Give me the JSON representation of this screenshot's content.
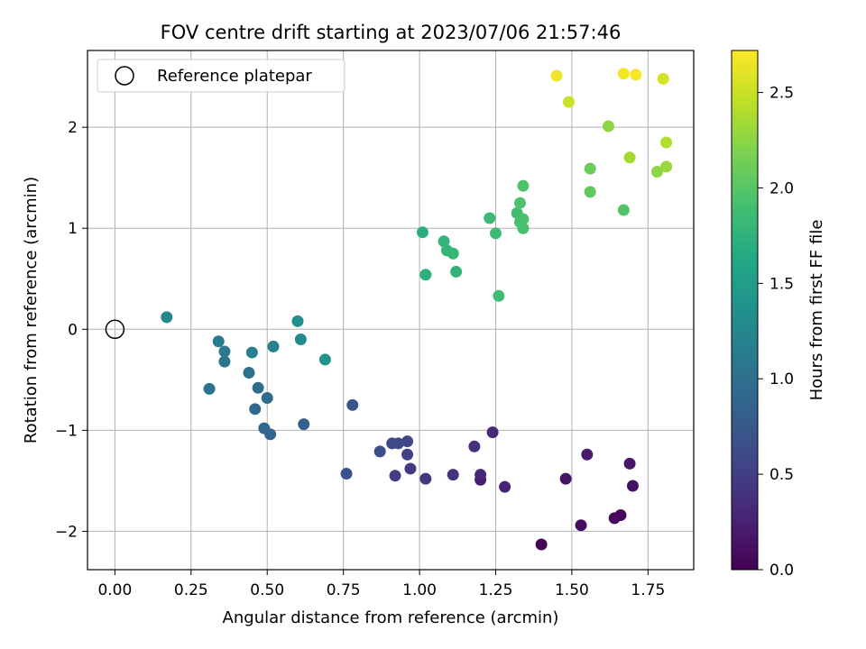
{
  "chart_data": {
    "type": "scatter",
    "title": "FOV centre drift starting at 2023/07/06 21:57:46",
    "xlabel": "Angular distance from reference (arcmin)",
    "ylabel": "Rotation from reference (arcmin)",
    "xlim": [
      -0.09,
      1.9
    ],
    "ylim": [
      -2.38,
      2.76
    ],
    "xticks": [
      "0.00",
      "0.25",
      "0.50",
      "0.75",
      "1.00",
      "1.25",
      "1.50",
      "1.75"
    ],
    "yticks": [
      "−2",
      "−1",
      "0",
      "1",
      "2"
    ],
    "grid": true,
    "legend": {
      "position": "top-left",
      "entries": [
        "Reference platepar"
      ]
    },
    "reference_point": {
      "x": 0.0,
      "y": 0.0
    },
    "colorbar": {
      "label": "Hours from first FF file",
      "range": [
        0.0,
        2.72
      ],
      "ticks": [
        "0.0",
        "0.5",
        "1.0",
        "1.5",
        "2.0",
        "2.5"
      ],
      "colormap": "viridis"
    },
    "points": [
      [
        1.4,
        -2.13,
        0.03
      ],
      [
        1.66,
        -1.84,
        0.05
      ],
      [
        1.64,
        -1.87,
        0.07
      ],
      [
        1.53,
        -1.94,
        0.1
      ],
      [
        1.7,
        -1.55,
        0.12
      ],
      [
        1.48,
        -1.48,
        0.15
      ],
      [
        1.69,
        -1.33,
        0.17
      ],
      [
        1.55,
        -1.24,
        0.2
      ],
      [
        1.2,
        -1.49,
        0.23
      ],
      [
        1.28,
        -1.56,
        0.26
      ],
      [
        1.2,
        -1.44,
        0.3
      ],
      [
        1.24,
        -1.02,
        0.33
      ],
      [
        1.18,
        -1.16,
        0.37
      ],
      [
        1.11,
        -1.44,
        0.4
      ],
      [
        1.02,
        -1.48,
        0.43
      ],
      [
        0.97,
        -1.38,
        0.47
      ],
      [
        0.92,
        -1.45,
        0.5
      ],
      [
        0.96,
        -1.24,
        0.53
      ],
      [
        0.96,
        -1.11,
        0.57
      ],
      [
        0.93,
        -1.13,
        0.59
      ],
      [
        0.91,
        -1.13,
        0.61
      ],
      [
        0.87,
        -1.21,
        0.65
      ],
      [
        0.76,
        -1.43,
        0.7
      ],
      [
        0.78,
        -0.75,
        0.73
      ],
      [
        0.62,
        -0.94,
        0.83
      ],
      [
        0.51,
        -1.04,
        0.87
      ],
      [
        0.49,
        -0.98,
        0.9
      ],
      [
        0.46,
        -0.79,
        0.93
      ],
      [
        0.5,
        -0.68,
        0.95
      ],
      [
        0.47,
        -0.58,
        0.97
      ],
      [
        0.44,
        -0.43,
        1.0
      ],
      [
        0.31,
        -0.59,
        1.03
      ],
      [
        0.36,
        -0.32,
        1.07
      ],
      [
        0.36,
        -0.22,
        1.1
      ],
      [
        0.34,
        -0.12,
        1.13
      ],
      [
        0.45,
        -0.23,
        1.16
      ],
      [
        0.52,
        -0.17,
        1.2
      ],
      [
        0.17,
        0.12,
        1.26
      ],
      [
        0.61,
        -0.1,
        1.3
      ],
      [
        0.6,
        0.08,
        1.34
      ],
      [
        0.69,
        -0.3,
        1.38
      ],
      [
        1.01,
        0.96,
        1.7
      ],
      [
        1.02,
        0.54,
        1.73
      ],
      [
        1.12,
        0.57,
        1.75
      ],
      [
        1.08,
        0.87,
        1.77
      ],
      [
        1.09,
        0.78,
        1.79
      ],
      [
        1.11,
        0.75,
        1.8
      ],
      [
        1.23,
        1.1,
        1.83
      ],
      [
        1.25,
        0.95,
        1.85
      ],
      [
        1.26,
        0.33,
        1.87
      ],
      [
        1.32,
        1.15,
        1.88
      ],
      [
        1.33,
        1.06,
        1.9
      ],
      [
        1.34,
        1.0,
        1.92
      ],
      [
        1.34,
        1.09,
        1.93
      ],
      [
        1.33,
        1.25,
        1.95
      ],
      [
        1.34,
        1.42,
        1.96
      ],
      [
        1.67,
        1.18,
        1.98
      ],
      [
        1.56,
        1.36,
        2.05
      ],
      [
        1.56,
        1.59,
        2.1
      ],
      [
        1.78,
        1.56,
        2.25
      ],
      [
        1.81,
        1.61,
        2.3
      ],
      [
        1.69,
        1.7,
        2.35
      ],
      [
        1.81,
        1.85,
        2.4
      ],
      [
        1.62,
        2.01,
        2.25
      ],
      [
        1.49,
        2.25,
        2.5
      ],
      [
        1.8,
        2.48,
        2.55
      ],
      [
        1.45,
        2.51,
        2.65
      ],
      [
        1.67,
        2.53,
        2.68
      ],
      [
        1.71,
        2.52,
        2.7
      ]
    ]
  }
}
